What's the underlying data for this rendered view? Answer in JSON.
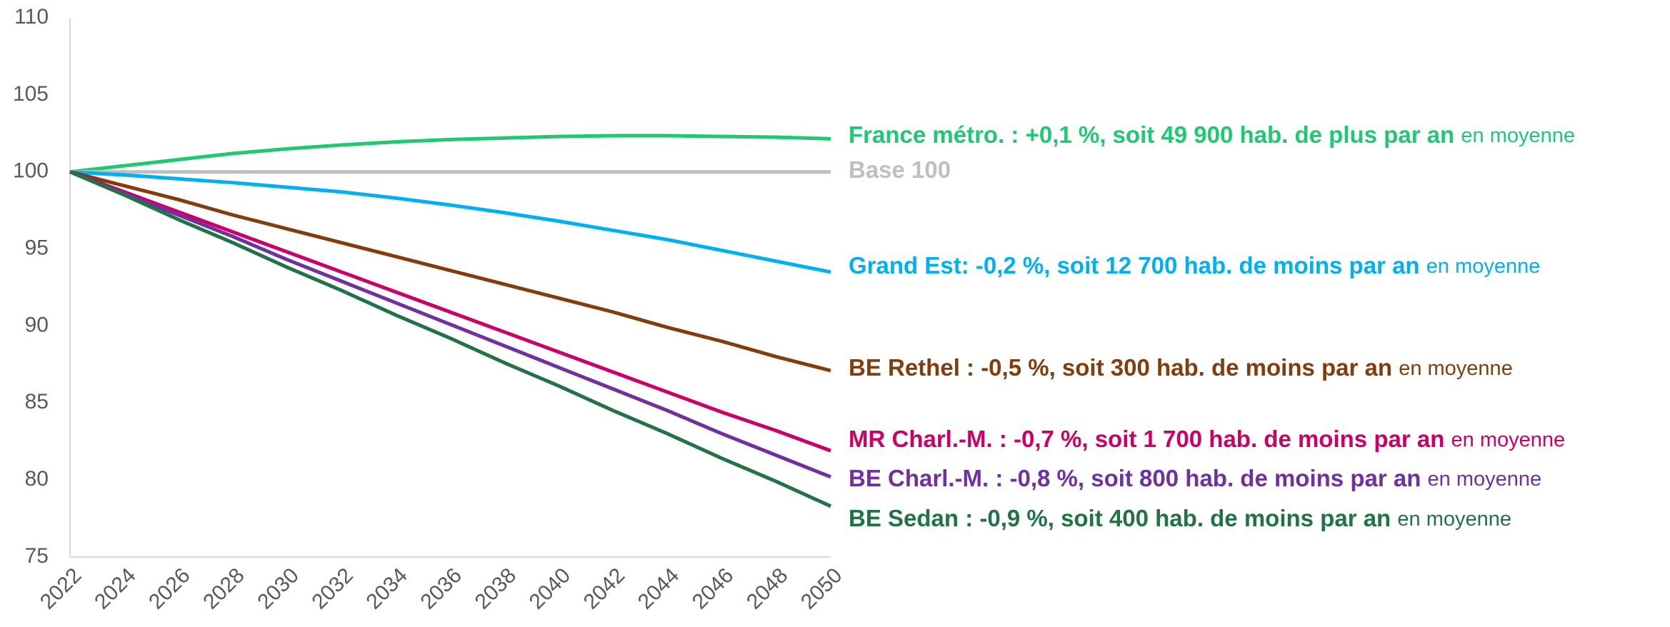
{
  "chart_data": {
    "type": "line",
    "x": [
      2022,
      2024,
      2026,
      2028,
      2030,
      2032,
      2034,
      2036,
      2038,
      2040,
      2042,
      2044,
      2046,
      2048,
      2050
    ],
    "xlim": [
      2022,
      2050
    ],
    "xticks": [
      2022,
      2024,
      2026,
      2028,
      2030,
      2032,
      2034,
      2036,
      2038,
      2040,
      2042,
      2044,
      2046,
      2048,
      2050
    ],
    "ylim": [
      75,
      110
    ],
    "yticks": [
      75,
      80,
      85,
      90,
      95,
      100,
      105,
      110
    ],
    "grid": false,
    "series": [
      {
        "name": "France métro. : +0,1 %, soit 49 900 hab. de plus par an",
        "note": "en moyenne",
        "color": "#1ec972",
        "values": [
          100,
          100.4,
          100.8,
          101.2,
          101.5,
          101.75,
          101.95,
          102.1,
          102.2,
          102.3,
          102.35,
          102.35,
          102.3,
          102.25,
          102.15
        ]
      },
      {
        "name": "Base 100",
        "color": "#bfbfbf",
        "values": [
          100,
          100,
          100,
          100,
          100,
          100,
          100,
          100,
          100,
          100,
          100,
          100,
          100,
          100,
          100
        ]
      },
      {
        "name": "Grand Est: -0,2 %, soit 12 700 hab. de moins par an",
        "note": "en moyenne",
        "color": "#00b0f0",
        "values": [
          100,
          99.8,
          99.55,
          99.3,
          99.0,
          98.7,
          98.3,
          97.85,
          97.35,
          96.8,
          96.2,
          95.6,
          94.9,
          94.2,
          93.5
        ]
      },
      {
        "name": "BE Rethel : -0,5 %, soit 300 hab. de moins par an",
        "note": "en moyenne",
        "color": "#843c0c",
        "values": [
          100,
          99.1,
          98.2,
          97.2,
          96.3,
          95.4,
          94.5,
          93.6,
          92.7,
          91.8,
          90.9,
          89.9,
          89.0,
          88.0,
          87.1
        ]
      },
      {
        "name": "MR Charl.-M. : -0,7 %, soit 1 700 hab. de moins par an",
        "note": "en moyenne",
        "color": "#cc0066",
        "values": [
          100,
          98.7,
          97.4,
          96.1,
          94.8,
          93.5,
          92.2,
          90.9,
          89.6,
          88.3,
          87.0,
          85.7,
          84.4,
          83.2,
          81.9
        ]
      },
      {
        "name": "BE Charl.-M. : -0,8 %, soit 800 hab. de moins par an",
        "note": "en moyenne",
        "color": "#7030a0",
        "values": [
          100,
          98.6,
          97.2,
          95.8,
          94.3,
          92.9,
          91.5,
          90.1,
          88.7,
          87.3,
          85.9,
          84.5,
          83.0,
          81.6,
          80.2
        ]
      },
      {
        "name": "BE Sedan : -0,9 %, soit 400 hab. de moins par an",
        "note": "en moyenne",
        "color": "#217346",
        "values": [
          100,
          98.5,
          96.9,
          95.4,
          93.8,
          92.3,
          90.7,
          89.2,
          87.6,
          86.1,
          84.5,
          83.0,
          81.4,
          79.9,
          78.3
        ]
      }
    ]
  }
}
